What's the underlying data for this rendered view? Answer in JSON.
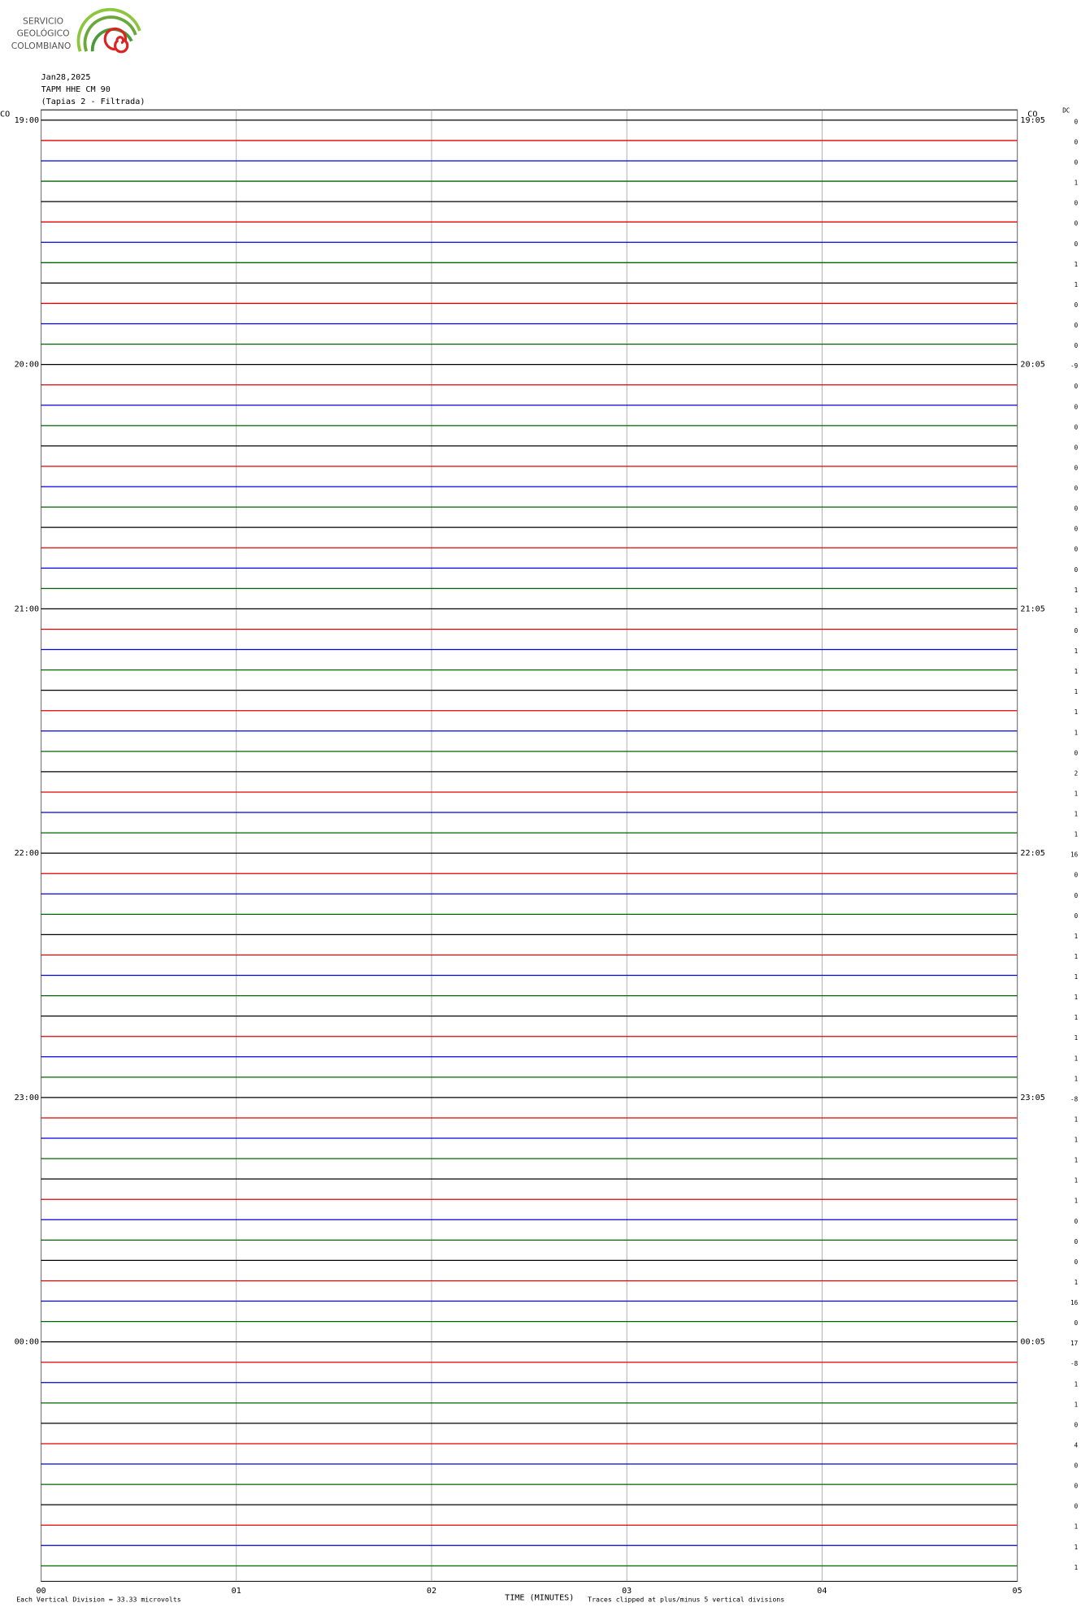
{
  "logo": {
    "lines": [
      "SERVICIO",
      "GEOLÓGICO",
      "COLOMBIANO"
    ]
  },
  "chart_data": {
    "type": "helicorder",
    "date": "Jan28,2025",
    "station": "TAPM HHE CM 90",
    "subtitle": "(Tapias 2 - Filtrada)",
    "left_network": "CO",
    "right_network": "CO",
    "dc_header": "DC",
    "colors": [
      "#000000",
      "#e00000",
      "#0000e0",
      "#006400"
    ],
    "xlabel": "TIME (MINUTES)",
    "xlim": [
      0,
      5
    ],
    "xticks": [
      {
        "value": 0,
        "label": "00"
      },
      {
        "value": 1,
        "label": "01"
      },
      {
        "value": 2,
        "label": "02"
      },
      {
        "value": 3,
        "label": "03"
      },
      {
        "value": 4,
        "label": "04"
      },
      {
        "value": 5,
        "label": "05"
      }
    ],
    "scale_note": "Each Vertical Division =   33.33 microvolts",
    "clip_note": "Traces clipped at plus/minus 5 vertical divisions",
    "hours": [
      {
        "label": "19:00",
        "right_label": "19:05",
        "dc": [
          0,
          0,
          0,
          1,
          0,
          0,
          0,
          1,
          1,
          0,
          0,
          0
        ]
      },
      {
        "label": "20:00",
        "right_label": "20:05",
        "dc": [
          -9,
          0,
          0,
          0,
          0,
          0,
          0,
          0,
          0,
          0,
          0,
          1
        ]
      },
      {
        "label": "21:00",
        "right_label": "21:05",
        "dc": [
          1,
          0,
          1,
          1,
          1,
          1,
          1,
          0,
          2,
          1,
          1,
          1
        ]
      },
      {
        "label": "22:00",
        "right_label": "22:05",
        "dc": [
          16,
          0,
          0,
          0,
          1,
          1,
          1,
          1,
          1,
          1,
          1,
          1
        ]
      },
      {
        "label": "23:00",
        "right_label": "23:05",
        "dc": [
          -8,
          1,
          1,
          1,
          1,
          1,
          0,
          0,
          0,
          1,
          16,
          0
        ]
      },
      {
        "label": "00:00",
        "right_label": "00:05",
        "dc": [
          17,
          -8,
          1,
          1,
          0,
          4,
          0,
          0,
          0,
          1,
          1,
          1
        ]
      }
    ]
  }
}
